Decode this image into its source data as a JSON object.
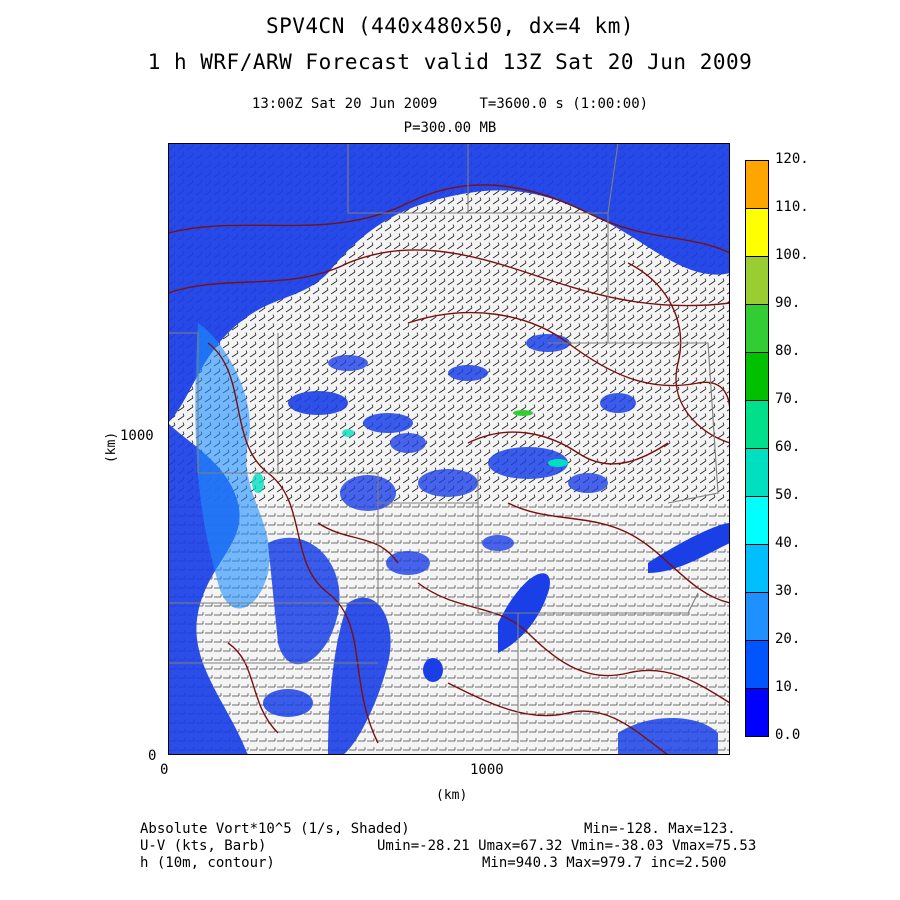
{
  "titles": {
    "line1": "SPV4CN (440x480x50, dx=4 km)",
    "line2": "1 h WRF/ARW Forecast valid 13Z Sat 20 Jun 2009",
    "time_info": "13:00Z Sat 20 Jun 2009     T=3600.0 s (1:00:00)",
    "level": "P=300.00 MB"
  },
  "axes": {
    "x_label": "(km)",
    "y_label": "(km)",
    "x_ticks": [
      "0",
      "1000"
    ],
    "y_ticks": [
      "0",
      "1000"
    ]
  },
  "colorbar": {
    "labels": [
      "120.",
      "110.",
      "100.",
      "90.",
      "80.",
      "70.",
      "60.",
      "50.",
      "40.",
      "30.",
      "20.",
      "10.",
      "0.0"
    ],
    "colors": [
      "#ffa500",
      "#ffd700",
      "#ffff00",
      "#9acd32",
      "#32cd32",
      "#00c000",
      "#00e08a",
      "#00e0c0",
      "#00ffff",
      "#00bfff",
      "#1e90ff",
      "#0055ff",
      "#0000ff"
    ]
  },
  "footer": {
    "field1": "Absolute Vort*10^5 (1/s, Shaded)",
    "field1_stats": "Min=-128. Max=123.",
    "field2": "U-V (kts, Barb)",
    "field2_stats": "Umin=-28.21 Umax=67.32 Vmin=-38.03 Vmax=75.53",
    "field3": "h (10m, contour)",
    "field3_stats": "Min=940.3 Max=979.7 inc=2.500"
  },
  "map_colors": {
    "vort_fill": "#1a3fe6",
    "vort_fill_light": "#1e90ff",
    "vort_fill_cyan": "#00e0c0",
    "contour": "#7a1010",
    "barb": "#222222",
    "border": "#7f7f7f"
  }
}
